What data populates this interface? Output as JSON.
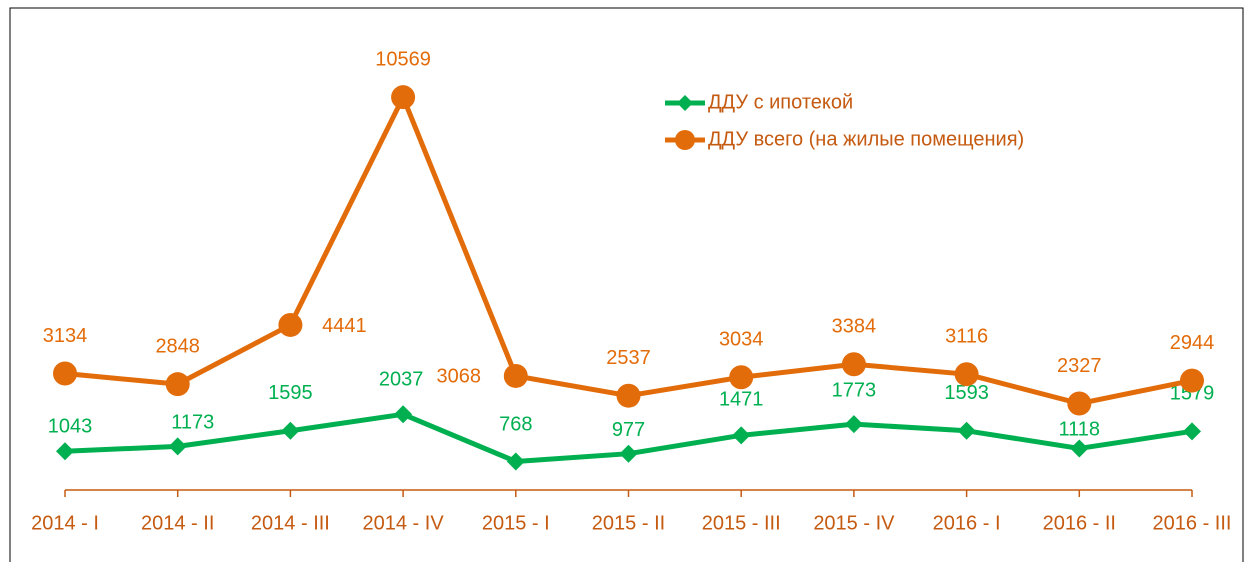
{
  "chart_data": {
    "type": "line",
    "categories": [
      "2014 - I",
      "2014 - II",
      "2014 - III",
      "2014 - IV",
      "2015 - I",
      "2015 - II",
      "2015 - III",
      "2015 - IV",
      "2016 - I",
      "2016 - II",
      "2016 - III"
    ],
    "series": [
      {
        "name": "ДДУ с ипотекой",
        "color": "#00b050",
        "marker": "diamond",
        "values": [
          1043,
          1173,
          1595,
          2037,
          768,
          977,
          1471,
          1773,
          1593,
          1118,
          1579
        ]
      },
      {
        "name": "ДДУ всего (на жилые помещения)",
        "color": "#e36c0a",
        "marker": "circle",
        "values": [
          3134,
          2848,
          4441,
          10569,
          3068,
          2537,
          3034,
          3384,
          3116,
          2327,
          2944
        ]
      }
    ],
    "ylim": [
      0,
      12000
    ],
    "legend": "top-right",
    "axis_color": "#c55a11"
  }
}
